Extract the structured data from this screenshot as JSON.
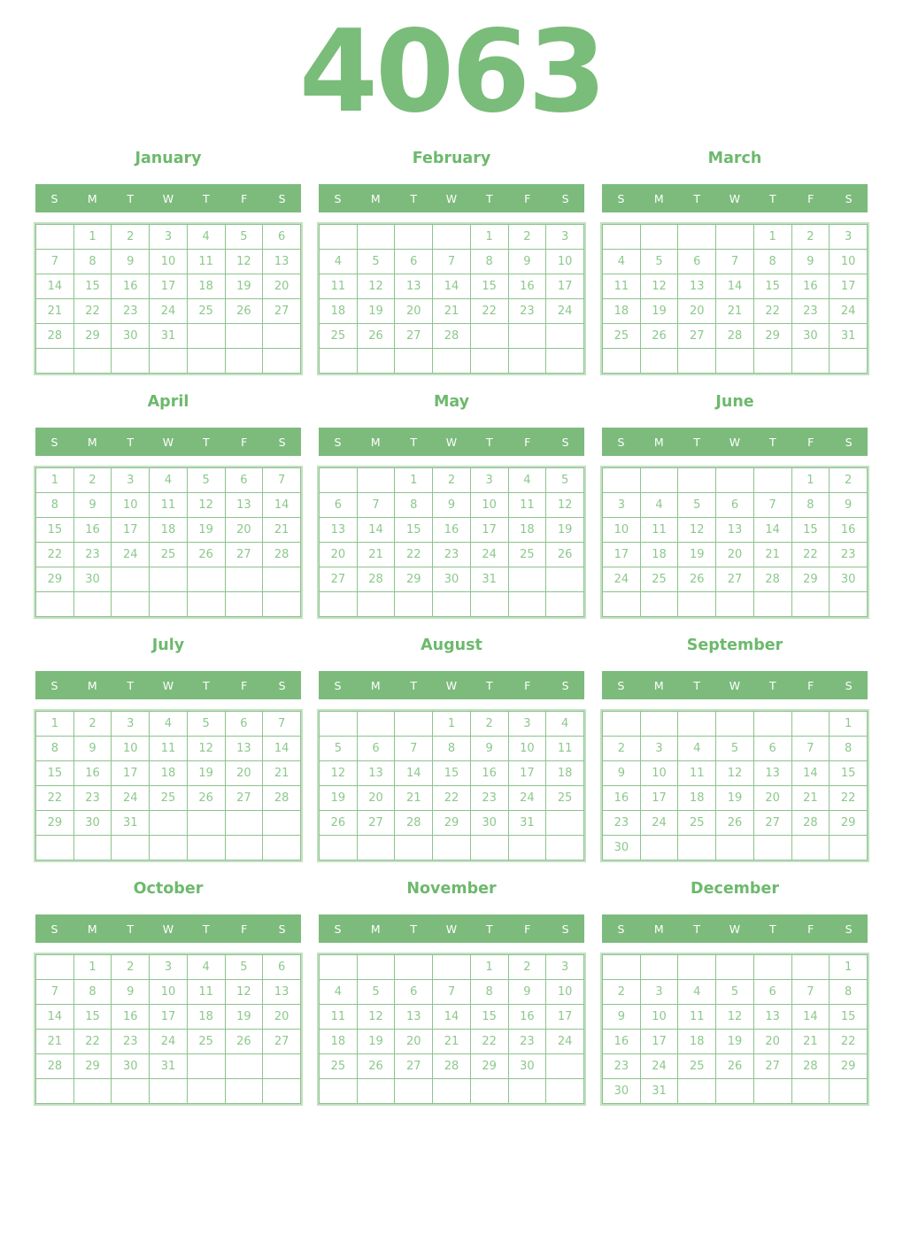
{
  "year": "4063",
  "colors": {
    "year_green": "#7abc7a",
    "month_title_green": "#6db96d",
    "weekday_bar_green": "#7cbb7c",
    "weekday_text": "#ffffff",
    "day_number_green": "#8cc88c",
    "grid_inner_border": "#8cc38c",
    "grid_outer_border": "#c2e0c2"
  },
  "weekday_labels": [
    "S",
    "M",
    "T",
    "W",
    "T",
    "F",
    "S"
  ],
  "months": [
    {
      "name": "January",
      "weeks": [
        [
          "",
          "1",
          "2",
          "3",
          "4",
          "5",
          "6"
        ],
        [
          "7",
          "8",
          "9",
          "10",
          "11",
          "12",
          "13"
        ],
        [
          "14",
          "15",
          "16",
          "17",
          "18",
          "19",
          "20"
        ],
        [
          "21",
          "22",
          "23",
          "24",
          "25",
          "26",
          "27"
        ],
        [
          "28",
          "29",
          "30",
          "31",
          "",
          "",
          ""
        ],
        [
          "",
          "",
          "",
          "",
          "",
          "",
          ""
        ]
      ]
    },
    {
      "name": "February",
      "weeks": [
        [
          "",
          "",
          "",
          "",
          "1",
          "2",
          "3"
        ],
        [
          "4",
          "5",
          "6",
          "7",
          "8",
          "9",
          "10"
        ],
        [
          "11",
          "12",
          "13",
          "14",
          "15",
          "16",
          "17"
        ],
        [
          "18",
          "19",
          "20",
          "21",
          "22",
          "23",
          "24"
        ],
        [
          "25",
          "26",
          "27",
          "28",
          "",
          "",
          ""
        ],
        [
          "",
          "",
          "",
          "",
          "",
          "",
          ""
        ]
      ]
    },
    {
      "name": "March",
      "weeks": [
        [
          "",
          "",
          "",
          "",
          "1",
          "2",
          "3"
        ],
        [
          "4",
          "5",
          "6",
          "7",
          "8",
          "9",
          "10"
        ],
        [
          "11",
          "12",
          "13",
          "14",
          "15",
          "16",
          "17"
        ],
        [
          "18",
          "19",
          "20",
          "21",
          "22",
          "23",
          "24"
        ],
        [
          "25",
          "26",
          "27",
          "28",
          "29",
          "30",
          "31"
        ],
        [
          "",
          "",
          "",
          "",
          "",
          "",
          ""
        ]
      ]
    },
    {
      "name": "April",
      "weeks": [
        [
          "1",
          "2",
          "3",
          "4",
          "5",
          "6",
          "7"
        ],
        [
          "8",
          "9",
          "10",
          "11",
          "12",
          "13",
          "14"
        ],
        [
          "15",
          "16",
          "17",
          "18",
          "19",
          "20",
          "21"
        ],
        [
          "22",
          "23",
          "24",
          "25",
          "26",
          "27",
          "28"
        ],
        [
          "29",
          "30",
          "",
          "",
          "",
          "",
          ""
        ],
        [
          "",
          "",
          "",
          "",
          "",
          "",
          ""
        ]
      ]
    },
    {
      "name": "May",
      "weeks": [
        [
          "",
          "",
          "1",
          "2",
          "3",
          "4",
          "5"
        ],
        [
          "6",
          "7",
          "8",
          "9",
          "10",
          "11",
          "12"
        ],
        [
          "13",
          "14",
          "15",
          "16",
          "17",
          "18",
          "19"
        ],
        [
          "20",
          "21",
          "22",
          "23",
          "24",
          "25",
          "26"
        ],
        [
          "27",
          "28",
          "29",
          "30",
          "31",
          "",
          ""
        ],
        [
          "",
          "",
          "",
          "",
          "",
          "",
          ""
        ]
      ]
    },
    {
      "name": "June",
      "weeks": [
        [
          "",
          "",
          "",
          "",
          "",
          "1",
          "2"
        ],
        [
          "3",
          "4",
          "5",
          "6",
          "7",
          "8",
          "9"
        ],
        [
          "10",
          "11",
          "12",
          "13",
          "14",
          "15",
          "16"
        ],
        [
          "17",
          "18",
          "19",
          "20",
          "21",
          "22",
          "23"
        ],
        [
          "24",
          "25",
          "26",
          "27",
          "28",
          "29",
          "30"
        ],
        [
          "",
          "",
          "",
          "",
          "",
          "",
          ""
        ]
      ]
    },
    {
      "name": "July",
      "weeks": [
        [
          "1",
          "2",
          "3",
          "4",
          "5",
          "6",
          "7"
        ],
        [
          "8",
          "9",
          "10",
          "11",
          "12",
          "13",
          "14"
        ],
        [
          "15",
          "16",
          "17",
          "18",
          "19",
          "20",
          "21"
        ],
        [
          "22",
          "23",
          "24",
          "25",
          "26",
          "27",
          "28"
        ],
        [
          "29",
          "30",
          "31",
          "",
          "",
          "",
          ""
        ],
        [
          "",
          "",
          "",
          "",
          "",
          "",
          ""
        ]
      ]
    },
    {
      "name": "August",
      "weeks": [
        [
          "",
          "",
          "",
          "1",
          "2",
          "3",
          "4"
        ],
        [
          "5",
          "6",
          "7",
          "8",
          "9",
          "10",
          "11"
        ],
        [
          "12",
          "13",
          "14",
          "15",
          "16",
          "17",
          "18"
        ],
        [
          "19",
          "20",
          "21",
          "22",
          "23",
          "24",
          "25"
        ],
        [
          "26",
          "27",
          "28",
          "29",
          "30",
          "31",
          ""
        ],
        [
          "",
          "",
          "",
          "",
          "",
          "",
          ""
        ]
      ]
    },
    {
      "name": "September",
      "weeks": [
        [
          "",
          "",
          "",
          "",
          "",
          "",
          "1"
        ],
        [
          "2",
          "3",
          "4",
          "5",
          "6",
          "7",
          "8"
        ],
        [
          "9",
          "10",
          "11",
          "12",
          "13",
          "14",
          "15"
        ],
        [
          "16",
          "17",
          "18",
          "19",
          "20",
          "21",
          "22"
        ],
        [
          "23",
          "24",
          "25",
          "26",
          "27",
          "28",
          "29"
        ],
        [
          "30",
          "",
          "",
          "",
          "",
          "",
          ""
        ]
      ]
    },
    {
      "name": "October",
      "weeks": [
        [
          "",
          "1",
          "2",
          "3",
          "4",
          "5",
          "6"
        ],
        [
          "7",
          "8",
          "9",
          "10",
          "11",
          "12",
          "13"
        ],
        [
          "14",
          "15",
          "16",
          "17",
          "18",
          "19",
          "20"
        ],
        [
          "21",
          "22",
          "23",
          "24",
          "25",
          "26",
          "27"
        ],
        [
          "28",
          "29",
          "30",
          "31",
          "",
          "",
          ""
        ],
        [
          "",
          "",
          "",
          "",
          "",
          "",
          ""
        ]
      ]
    },
    {
      "name": "November",
      "weeks": [
        [
          "",
          "",
          "",
          "",
          "1",
          "2",
          "3"
        ],
        [
          "4",
          "5",
          "6",
          "7",
          "8",
          "9",
          "10"
        ],
        [
          "11",
          "12",
          "13",
          "14",
          "15",
          "16",
          "17"
        ],
        [
          "18",
          "19",
          "20",
          "21",
          "22",
          "23",
          "24"
        ],
        [
          "25",
          "26",
          "27",
          "28",
          "29",
          "30",
          ""
        ],
        [
          "",
          "",
          "",
          "",
          "",
          "",
          ""
        ]
      ]
    },
    {
      "name": "December",
      "weeks": [
        [
          "",
          "",
          "",
          "",
          "",
          "",
          "1"
        ],
        [
          "2",
          "3",
          "4",
          "5",
          "6",
          "7",
          "8"
        ],
        [
          "9",
          "10",
          "11",
          "12",
          "13",
          "14",
          "15"
        ],
        [
          "16",
          "17",
          "18",
          "19",
          "20",
          "21",
          "22"
        ],
        [
          "23",
          "24",
          "25",
          "26",
          "27",
          "28",
          "29"
        ],
        [
          "30",
          "31",
          "",
          "",
          "",
          "",
          ""
        ]
      ]
    }
  ]
}
